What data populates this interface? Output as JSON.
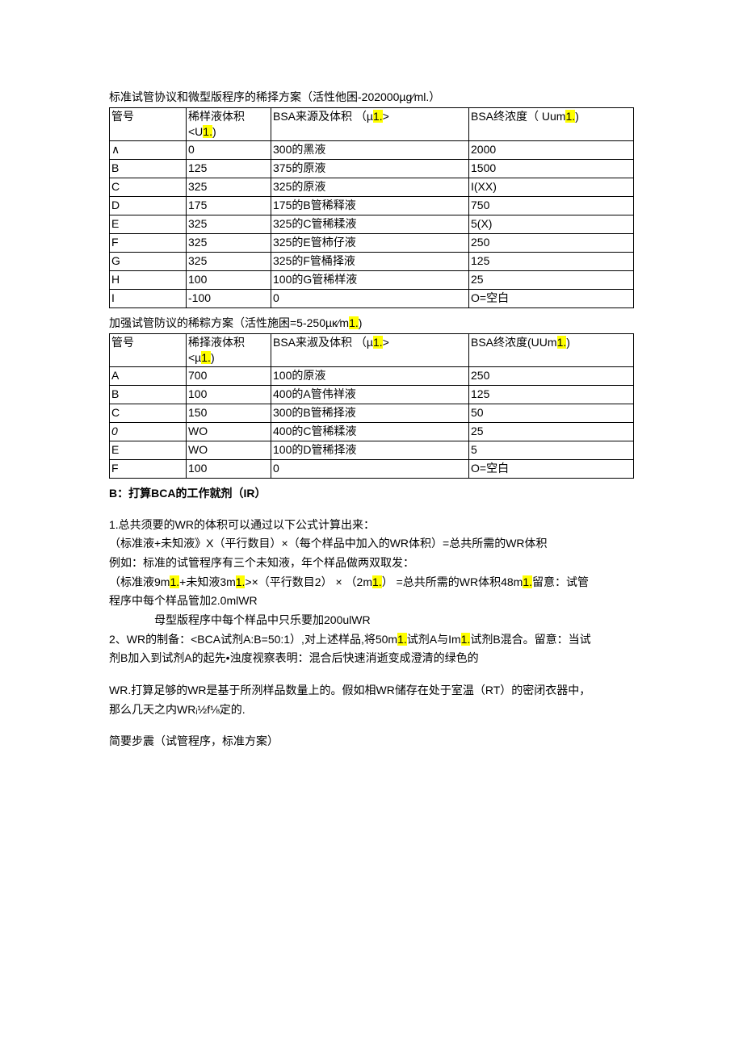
{
  "table1": {
    "title_pre": "标准试管协议和微型版程序的稀择方案（活性他困-202000µg⁄ml.）",
    "headers": {
      "c1": "管号",
      "c2_pre": "稀样液体积<U",
      "c2_hl": "1.",
      "c2_post": ")",
      "c3_pre": "BSA来源及体积 （µ",
      "c3_hl": "1.",
      "c3_post": ">",
      "c4_pre": "BSA终浓度（ Uum",
      "c4_hl": "1.",
      "c4_post": ")"
    },
    "rows": [
      {
        "c1": "∧",
        "c2": "0",
        "c3": "300的黑液",
        "c4": "2000"
      },
      {
        "c1": "B",
        "c2": "125",
        "c3": "375的原液",
        "c4": "1500"
      },
      {
        "c1": "C",
        "c2": "325",
        "c3": "325的原液",
        "c4": "I(XX)"
      },
      {
        "c1": "D",
        "c2": "175",
        "c3": "175的B管稀释液",
        "c4": "750"
      },
      {
        "c1": "E",
        "c2": "325",
        "c3": "325的C管稀糅液",
        "c4": "5(X)"
      },
      {
        "c1": "F",
        "c2": "325",
        "c3": "325的E管柿仔液",
        "c4": "250"
      },
      {
        "c1": "G",
        "c2": "325",
        "c3": "325的F管桶择液",
        "c4": "125"
      },
      {
        "c1": "H",
        "c2": "100",
        "c3": "100的G管稀样液",
        "c4": "25"
      },
      {
        "c1": "I",
        "c2": "-100",
        "c3": "0",
        "c4": "O=空白"
      }
    ]
  },
  "table2": {
    "title_pre": "加强试管防议的稀粽方案（活性施困=5-250µκ⁄m",
    "title_hl": "1.",
    "title_post": ")",
    "headers": {
      "c1": "管号",
      "c2_pre": "稀择液体积<µ",
      "c2_hl": "1.",
      "c2_post": ")",
      "c3_pre": "BSA来淑及体积 （µ",
      "c3_hl": "1.",
      "c3_post": ">",
      "c4_pre": "BSA终浓度(UUm",
      "c4_hl": "1.",
      "c4_post": ")"
    },
    "rows": [
      {
        "c1": "A",
        "c2": "700",
        "c3": "100的原液",
        "c4": "250"
      },
      {
        "c1": "B",
        "c2": "100",
        "c3": "400的A管伟祥液",
        "c4": "125"
      },
      {
        "c1": "C",
        "c2": "150",
        "c3": "300的B管稀择液",
        "c4": "50"
      },
      {
        "c1": "0",
        "c1_italic": true,
        "c2": "WO",
        "c3": "400的C管稀糅液",
        "c4": "25"
      },
      {
        "c1": "E",
        "c2": "WO",
        "c3": "100的D管稀择液",
        "c4": "5"
      },
      {
        "c1": "F",
        "c2": "100",
        "c3": "0",
        "c4": "O=空白"
      }
    ]
  },
  "sectionB": {
    "heading_pre": "B：打算",
    "heading_bold": "BCA",
    "heading_mid": "的工作就剂（",
    "heading_bold2": "IR",
    "heading_post": "）"
  },
  "body": {
    "p1": "1.总共须要的WR的体积可以通过以下公式计算出来：",
    "p2": "（标准液+未知液》X（平行数目）×（每个样品中加入的WR体积）=总共所需的WR体积",
    "p3": "例如：标准的试管程序有三个未知液，年个样品做两双取发：",
    "p4_a": "（标准液9m",
    "p4_hl1": "1.",
    "p4_b": "+未知液3m",
    "p4_hl2": "1.",
    "p4_c": ">×（平行数目2） × （2m",
    "p4_hl3": "1.",
    "p4_d": "） =总共所需的WR体积48m",
    "p4_hl4": "1.",
    "p4_e": "留意：试管",
    "p5": "程序中每个样品管加2.0mlWR",
    "p6": "母型版程序中每个样品中只乐要加200ulWR",
    "p7_a": "2、WR的制备：<BCA试剂A:B=50:1）,对上述样品,将50m",
    "p7_hl1": "1.",
    "p7_b": "试剂A与Im",
    "p7_hl2": "1.",
    "p7_c": "试剂B混合。留意：当试",
    "p8": "剂B加入到试剂A的起先•浊度视察表明：混合后快速消逝变成澄清的绿色的",
    "p9": "WR.打算足够的WR是基于所洌样品数量上的。假如相WR储存在处于室温（RT）的密闭衣器中，",
    "p10": "那么几天之内WRᵢ½f⅛定的.",
    "p11": "简要步震（试管程序，标准方案）"
  }
}
